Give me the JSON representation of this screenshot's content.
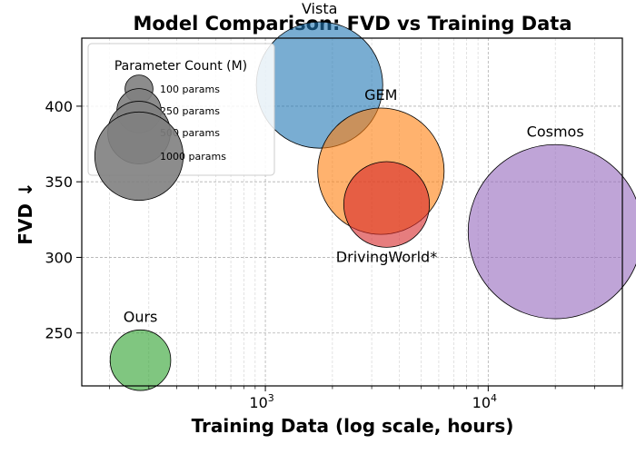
{
  "chart_data": {
    "type": "scatter",
    "title": "Model Comparison: FVD vs Training Data",
    "xlabel": "Training Data (log scale, hours)",
    "ylabel": "FVD ↓",
    "xscale": "log",
    "xlim": [
      150,
      40000
    ],
    "ylim": [
      215,
      445
    ],
    "xtick_labels": [
      {
        "value": 1000,
        "base": "10",
        "exp": "3"
      },
      {
        "value": 10000,
        "base": "10",
        "exp": "4"
      }
    ],
    "yticks": [
      250,
      300,
      350,
      400
    ],
    "grid": true,
    "legend": {
      "title": "Parameter Count (M)",
      "placement": "upper-left",
      "entries": [
        {
          "label": "100 params",
          "params": 100
        },
        {
          "label": "250 params",
          "params": 250
        },
        {
          "label": "500 params",
          "params": 500
        },
        {
          "label": "1000 params",
          "params": 1000
        }
      ]
    },
    "points": [
      {
        "label": "Vista",
        "x": 1750,
        "y": 414,
        "params": 1000,
        "color": "#1f77b4",
        "label_pos": "above"
      },
      {
        "label": "GEM",
        "x": 3300,
        "y": 357,
        "params": 1000,
        "color": "#ff7f0e",
        "label_pos": "above"
      },
      {
        "label": "DrivingWorld*",
        "x": 3500,
        "y": 335,
        "params": 460,
        "color": "#d62728",
        "label_pos": "below"
      },
      {
        "label": "Cosmos",
        "x": 20000,
        "y": 317,
        "params": 1900,
        "color": "#9467bd",
        "label_pos": "above"
      },
      {
        "label": "Ours",
        "x": 275,
        "y": 232,
        "params": 230,
        "color": "#2ca02c",
        "label_pos": "above"
      }
    ]
  }
}
